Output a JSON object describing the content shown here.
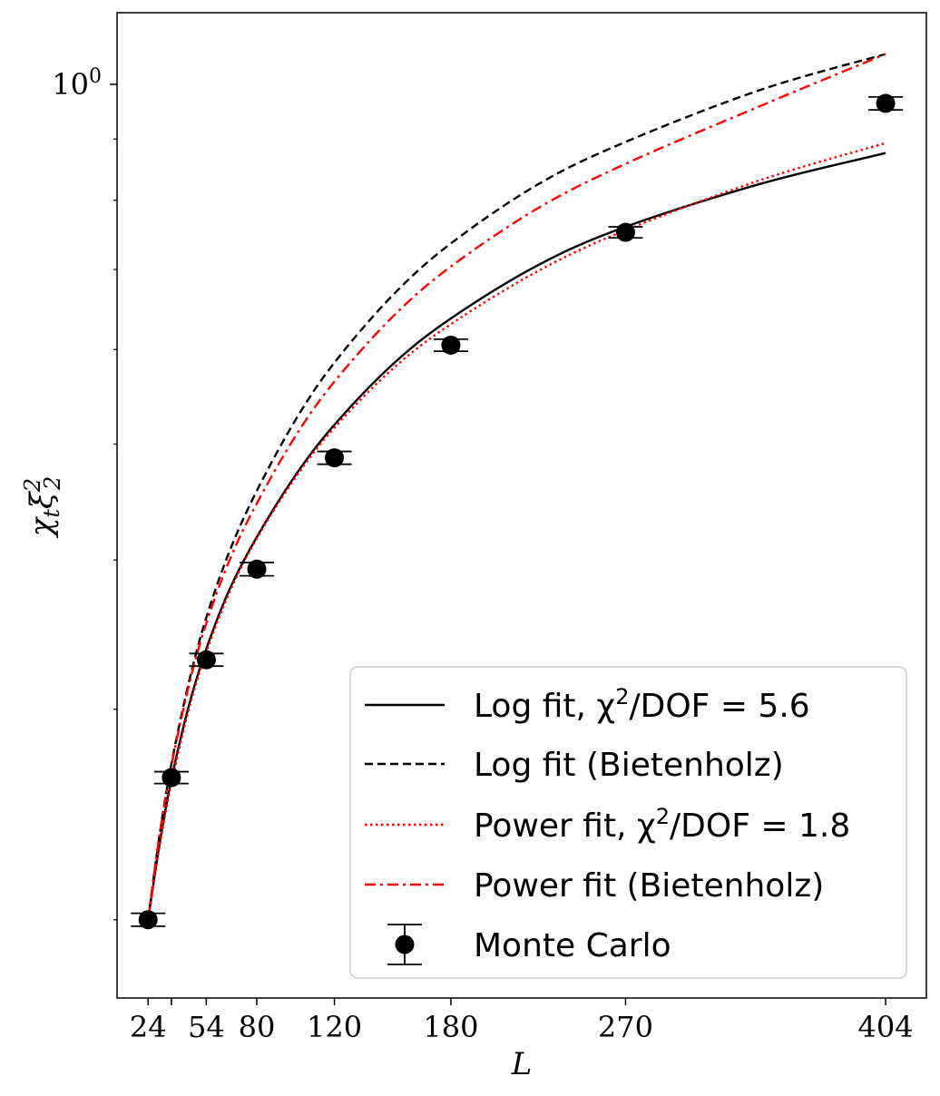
{
  "chart_data": {
    "type": "line",
    "xlabel": "L",
    "ylabel": "χ_t ξ_2^2",
    "x_ticks": [
      24,
      36,
      54,
      80,
      120,
      180,
      270,
      404
    ],
    "x_tick_labels": [
      "24",
      "",
      "54",
      "80",
      "120",
      "180",
      "270",
      "404"
    ],
    "y_scale": "log",
    "y_major_tick_label": "10^0",
    "xlim": [
      8,
      425
    ],
    "ylim": [
      0.172,
      1.148
    ],
    "legend_position": "lower-right",
    "grid": false,
    "series": [
      {
        "name": "Log fit, χ^2/DOF = 5.6",
        "style": "solid",
        "color": "#000000",
        "x": [
          24,
          30,
          36,
          45,
          54,
          66,
          80,
          100,
          120,
          150,
          180,
          225,
          270,
          340,
          404
        ],
        "y": [
          0.2,
          0.232,
          0.262,
          0.302,
          0.337,
          0.378,
          0.418,
          0.471,
          0.519,
          0.583,
          0.637,
          0.706,
          0.76,
          0.826,
          0.876
        ]
      },
      {
        "name": "Log fit (Bietenholz)",
        "style": "dashed",
        "color": "#000000",
        "x": [
          24,
          30,
          36,
          45,
          54,
          66,
          80,
          100,
          120,
          150,
          180,
          225,
          270,
          340,
          404
        ],
        "y": [
          0.2,
          0.236,
          0.27,
          0.316,
          0.358,
          0.407,
          0.457,
          0.524,
          0.585,
          0.666,
          0.736,
          0.825,
          0.895,
          0.99,
          1.06
        ]
      },
      {
        "name": "Power fit, χ^2/DOF = 1.8",
        "style": "dotted",
        "color": "#ff0000",
        "x": [
          24,
          30,
          36,
          45,
          54,
          66,
          80,
          100,
          120,
          150,
          180,
          225,
          270,
          340,
          404
        ],
        "y": [
          0.2,
          0.231,
          0.26,
          0.3,
          0.335,
          0.376,
          0.417,
          0.469,
          0.516,
          0.578,
          0.63,
          0.698,
          0.755,
          0.832,
          0.893
        ]
      },
      {
        "name": "Power fit (Bietenholz)",
        "style": "dashdot",
        "color": "#ff0000",
        "x": [
          24,
          30,
          36,
          45,
          54,
          66,
          80,
          100,
          120,
          150,
          180,
          225,
          270,
          340,
          404
        ],
        "y": [
          0.2,
          0.236,
          0.269,
          0.314,
          0.354,
          0.4,
          0.446,
          0.508,
          0.564,
          0.639,
          0.704,
          0.788,
          0.858,
          0.96,
          1.06
        ]
      },
      {
        "name": "Monte Carlo",
        "style": "markers",
        "color": "#000000",
        "x": [
          24,
          36,
          54,
          80,
          120,
          180,
          270,
          404
        ],
        "y": [
          0.2,
          0.263,
          0.33,
          0.393,
          0.487,
          0.605,
          0.752,
          0.964
        ],
        "yerr": [
          0.0025,
          0.003,
          0.004,
          0.005,
          0.006,
          0.007,
          0.008,
          0.012
        ]
      }
    ]
  }
}
